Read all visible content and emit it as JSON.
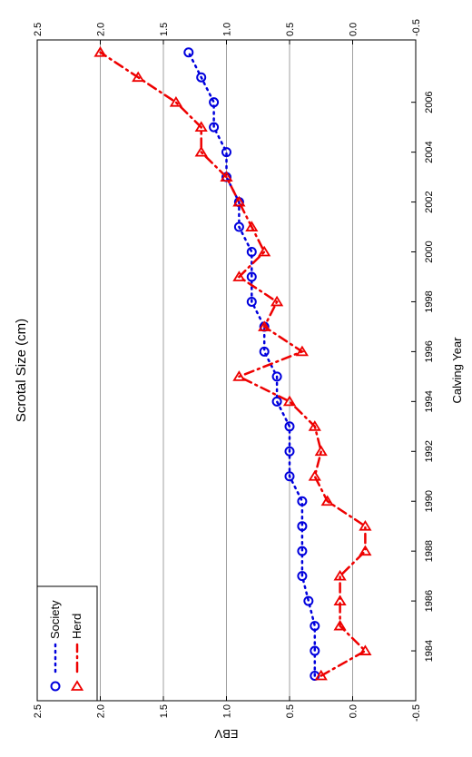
{
  "chart_data": {
    "type": "line",
    "title": "Scrotal Size (cm)",
    "xlabel": "Calving Year",
    "ylabel": "EBV",
    "xlim": [
      1982,
      2008.5
    ],
    "ylim": [
      -0.5,
      2.5
    ],
    "x_ticks": [
      1984,
      1986,
      1988,
      1990,
      1992,
      1994,
      1996,
      1998,
      2000,
      2002,
      2004,
      2006
    ],
    "y_ticks": [
      -0.5,
      0.0,
      0.5,
      1.0,
      1.5,
      2.0,
      2.5
    ],
    "y_tick_labels": [
      "-0.5",
      "0.0",
      "0.5",
      "1.0",
      "1.5",
      "2.0",
      "2.5"
    ],
    "grid": "horizontal",
    "legend_position": "top-left",
    "colors": {
      "Society": "#0000dd",
      "Herd": "#ee0000"
    },
    "x": [
      1983,
      1984,
      1985,
      1986,
      1987,
      1988,
      1989,
      1990,
      1991,
      1992,
      1993,
      1994,
      1995,
      1996,
      1997,
      1998,
      1999,
      2000,
      2001,
      2002,
      2003,
      2004,
      2005,
      2006,
      2007,
      2008
    ],
    "series": [
      {
        "name": "Society",
        "marker": "circle",
        "line": "dotted",
        "values": [
          0.3,
          0.3,
          0.3,
          0.35,
          0.4,
          0.4,
          0.4,
          0.4,
          0.5,
          0.5,
          0.5,
          0.6,
          0.6,
          0.7,
          0.7,
          0.8,
          0.8,
          0.8,
          0.9,
          0.9,
          1.0,
          1.0,
          1.1,
          1.1,
          1.2,
          1.3
        ]
      },
      {
        "name": "Herd",
        "marker": "triangle",
        "line": "dash-dot",
        "values": [
          0.25,
          -0.1,
          0.1,
          0.1,
          0.1,
          -0.1,
          -0.1,
          0.2,
          0.3,
          0.25,
          0.3,
          0.5,
          0.9,
          0.4,
          0.7,
          0.6,
          0.9,
          0.7,
          0.8,
          0.9,
          1.0,
          1.2,
          1.2,
          1.4,
          1.7,
          2.0
        ]
      }
    ]
  }
}
